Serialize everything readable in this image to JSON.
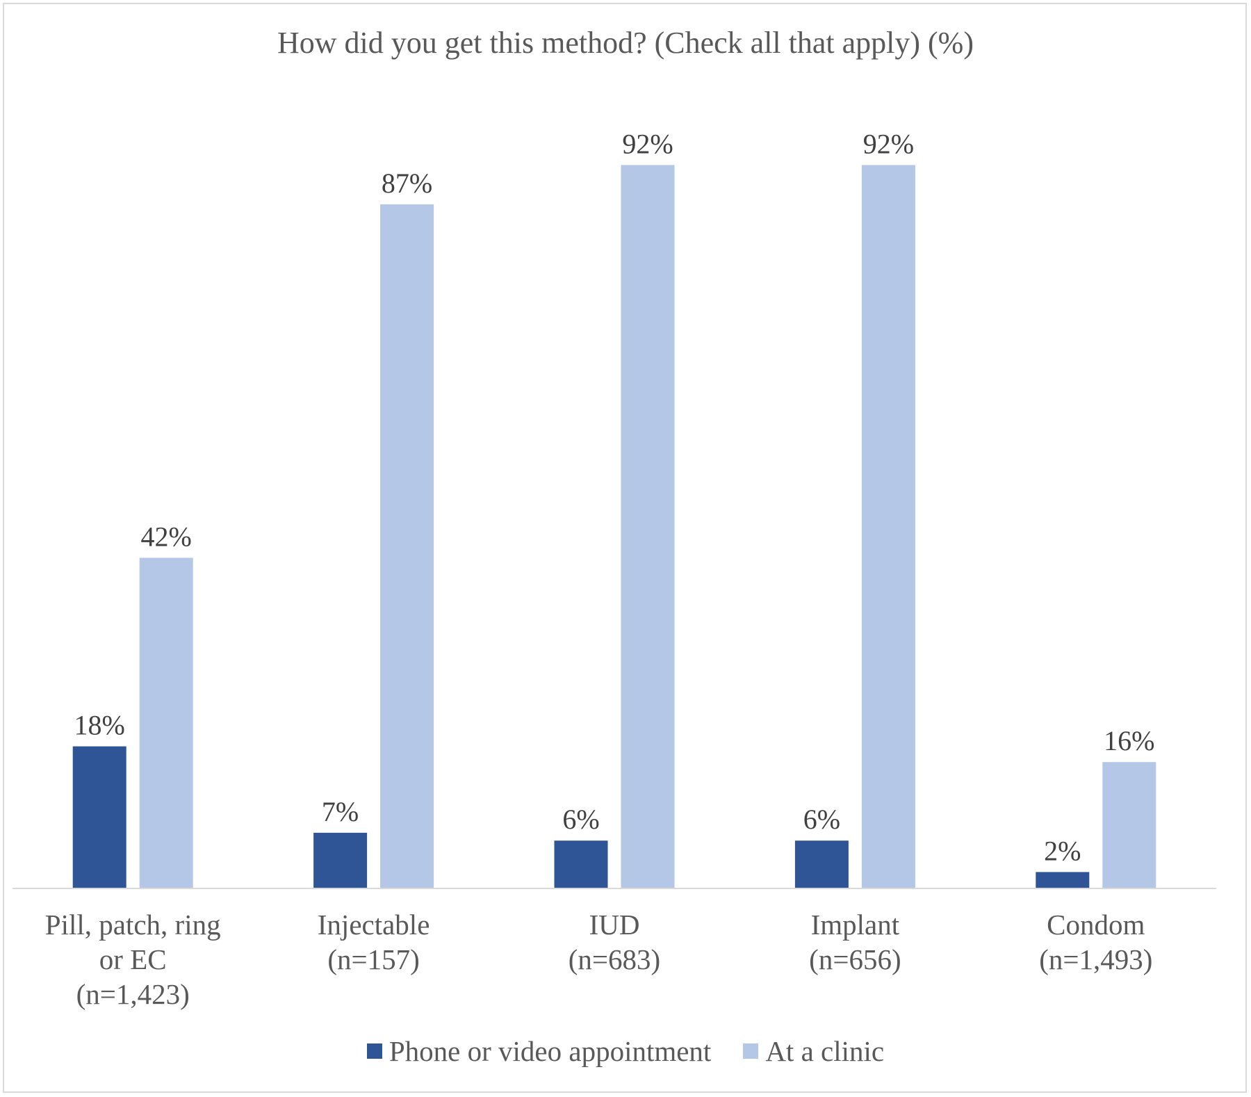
{
  "chart_data": {
    "type": "bar",
    "title": "How did you get this method? (Check all that apply) (%)",
    "categories": [
      [
        "Pill, patch, ring",
        "or EC",
        "(n=1,423)"
      ],
      [
        "Injectable",
        "(n=157)"
      ],
      [
        "IUD",
        "(n=683)"
      ],
      [
        "Implant",
        "(n=656)"
      ],
      [
        "Condom",
        "(n=1,493)"
      ]
    ],
    "series": [
      {
        "name": "Phone or video appointment",
        "color": "#2f5597",
        "values": [
          18,
          7,
          6,
          6,
          2
        ],
        "labels": [
          "18%",
          "7%",
          "6%",
          "6%",
          "2%"
        ]
      },
      {
        "name": "At a clinic",
        "color": "#b4c7e7",
        "values": [
          42,
          87,
          92,
          92,
          16
        ],
        "labels": [
          "42%",
          "87%",
          "92%",
          "92%",
          "16%"
        ]
      }
    ],
    "ylim": [
      0,
      100
    ],
    "grid": false,
    "legend_position": "bottom",
    "xlabel": "",
    "ylabel": ""
  }
}
